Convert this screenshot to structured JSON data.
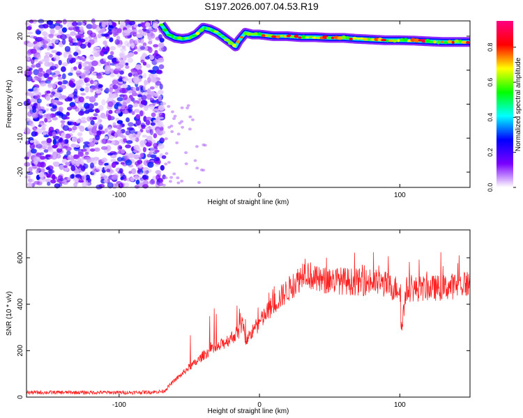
{
  "title": "S197.2026.007.04.53.R19",
  "chart_data": [
    {
      "type": "heatmap",
      "xlabel": "Height of straight line (km)",
      "ylabel": "Frequency (Hz)",
      "xlim": [
        -166,
        150
      ],
      "ylim": [
        -24.5,
        24.5
      ],
      "xticks": [
        -100,
        0,
        100
      ],
      "xtick_labels": [
        "-100",
        "0",
        "100"
      ],
      "yticks": [
        -20,
        -10,
        0,
        10,
        20
      ],
      "ytick_labels": [
        "-20",
        "-10",
        "0",
        "10",
        "20"
      ],
      "noise_region_x": [
        -166,
        -68
      ],
      "ridge": {
        "x": [
          -70,
          -65,
          -60,
          -55,
          -50,
          -45,
          -40,
          -35,
          -30,
          -25,
          -20,
          -17,
          -15,
          -10,
          -5,
          0,
          10,
          20,
          30,
          40,
          50,
          60,
          70,
          80,
          90,
          100,
          110,
          120,
          130,
          140,
          150
        ],
        "freq": [
          23.5,
          20.5,
          19.5,
          19.2,
          19.5,
          20.5,
          22.5,
          22,
          21,
          19.5,
          18,
          17,
          18.5,
          21,
          20.5,
          20.5,
          20,
          20,
          19.7,
          19.7,
          19.5,
          19.5,
          19.2,
          19,
          18.8,
          18.8,
          18.7,
          18.5,
          18.3,
          18.3,
          18.3
        ]
      },
      "colorbar": {
        "label": "Normalized spectral amplitude",
        "range": [
          0,
          0.95
        ],
        "ticks": [
          0,
          0.2,
          0.4,
          0.6,
          0.8
        ],
        "tick_labels": [
          "0.0",
          "0.2",
          "0.4",
          "0.6",
          "0.8"
        ],
        "colors": [
          "#ffffff",
          "#7a00ff",
          "#0000ff",
          "#00ffff",
          "#00ff00",
          "#ffff00",
          "#ff0000",
          "#ff0080"
        ]
      }
    },
    {
      "type": "line",
      "xlabel": "Height of straight line (km)",
      "ylabel": "SNR (10 * v/v)",
      "xlim": [
        -166,
        150
      ],
      "ylim": [
        0,
        720
      ],
      "xticks": [
        -100,
        0,
        100
      ],
      "xtick_labels": [
        "-100",
        "0",
        "100"
      ],
      "yticks": [
        0,
        200,
        400,
        600
      ],
      "ytick_labels": [
        "0",
        "200",
        "400",
        "600"
      ],
      "color": "#ff2020",
      "x": [
        -166,
        -150,
        -130,
        -110,
        -90,
        -75,
        -68,
        -65,
        -60,
        -55,
        -50,
        -45,
        -40,
        -35,
        -30,
        -25,
        -20,
        -15,
        -12,
        -10,
        -5,
        0,
        5,
        10,
        15,
        20,
        25,
        30,
        32,
        35,
        40,
        45,
        50,
        60,
        70,
        80,
        90,
        95,
        100,
        101,
        105,
        110,
        120,
        130,
        140,
        150
      ],
      "y": [
        20,
        20,
        20,
        20,
        20,
        22,
        25,
        45,
        75,
        100,
        130,
        150,
        180,
        200,
        210,
        235,
        255,
        280,
        320,
        240,
        280,
        320,
        360,
        400,
        430,
        460,
        490,
        520,
        560,
        530,
        505,
        500,
        505,
        500,
        495,
        495,
        485,
        470,
        470,
        300,
        465,
        465,
        470,
        470,
        480,
        490
      ]
    }
  ]
}
